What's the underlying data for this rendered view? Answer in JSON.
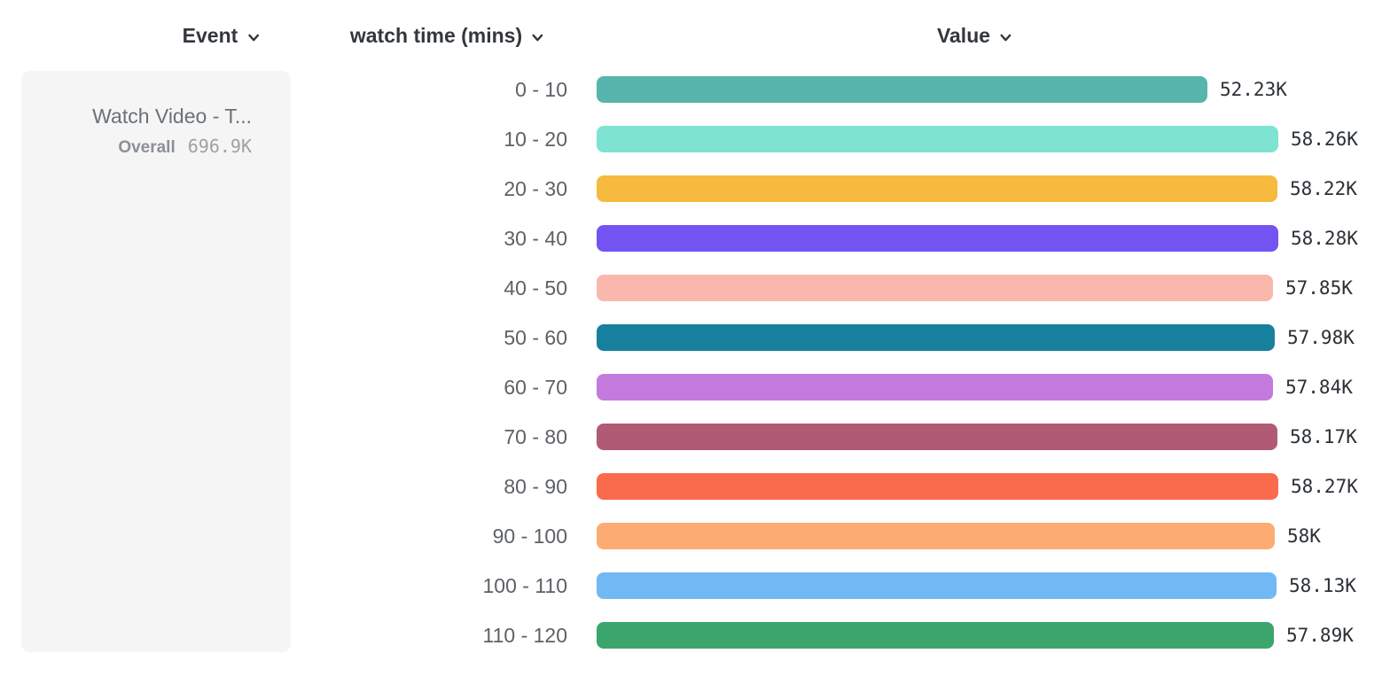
{
  "header": {
    "columns": [
      {
        "id": "event",
        "label": "Event",
        "icon": "chevron-down-icon"
      },
      {
        "id": "breakdown",
        "label": "watch time (mins)",
        "icon": "chevron-down-icon"
      },
      {
        "id": "value",
        "label": "Value",
        "icon": "chevron-down-icon"
      }
    ]
  },
  "event_card": {
    "title": "Watch Video - T...",
    "overall_label": "Overall",
    "overall_value": "696.9K"
  },
  "chart_data": {
    "type": "bar",
    "orientation": "horizontal",
    "title": "",
    "xlabel": "Value",
    "ylabel": "watch time (mins)",
    "xlim": [
      0,
      58280
    ],
    "grid": false,
    "categories": [
      "0 - 10",
      "10 - 20",
      "20 - 30",
      "30 - 40",
      "40 - 50",
      "50 - 60",
      "60 - 70",
      "70 - 80",
      "80 - 90",
      "90 - 100",
      "100 - 110",
      "110 - 120"
    ],
    "series": [
      {
        "name": "Value",
        "values": [
          52230,
          58260,
          58220,
          58280,
          57850,
          57980,
          57840,
          58170,
          58270,
          58000,
          58130,
          57890
        ]
      }
    ],
    "value_labels": [
      "52.23K",
      "58.26K",
      "58.22K",
      "58.28K",
      "57.85K",
      "57.98K",
      "57.84K",
      "58.17K",
      "58.27K",
      "58K",
      "58.13K",
      "57.89K"
    ],
    "bar_colors": [
      "#58b5ad",
      "#7fe3d2",
      "#f5ba3e",
      "#7354f3",
      "#fab7ad",
      "#17809e",
      "#c47add",
      "#b05a74",
      "#fa6a4c",
      "#fcab73",
      "#70b9f4",
      "#3ba56c"
    ]
  }
}
